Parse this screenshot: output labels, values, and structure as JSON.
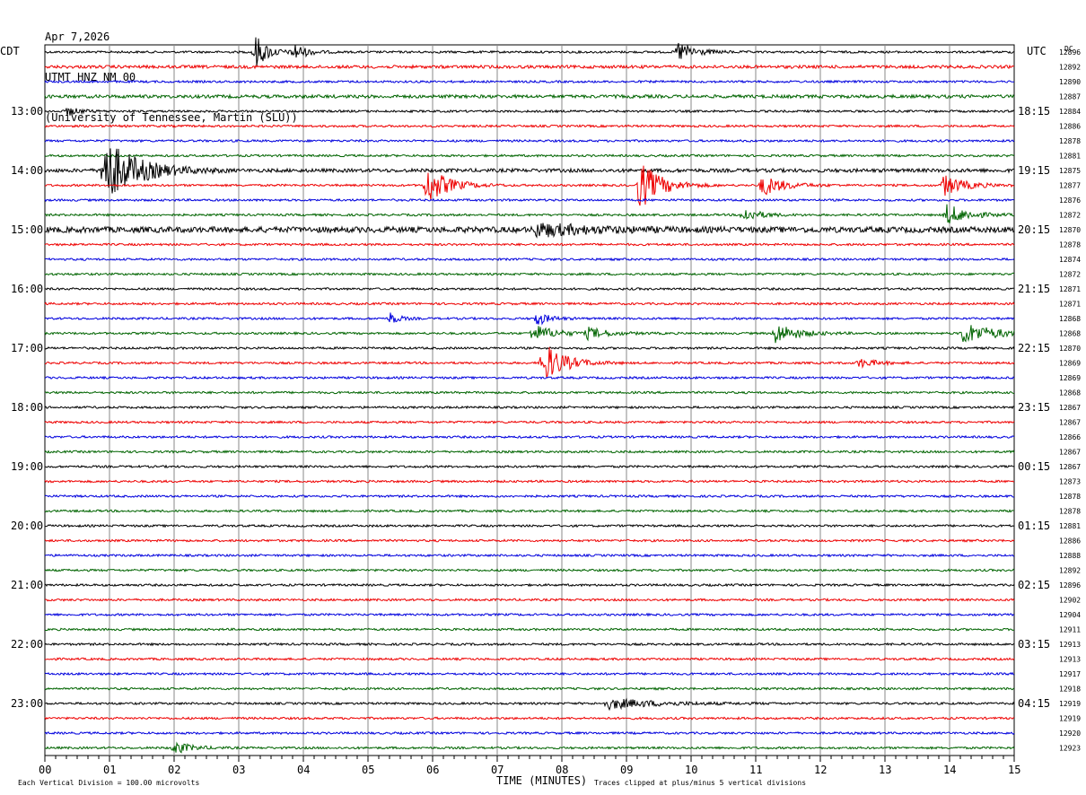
{
  "header": {
    "date": "Apr 7,2026",
    "station": "UTMT HNZ NM 00",
    "network": "(University of Tennessee, Martin (SLU))"
  },
  "chart_data": {
    "type": "line",
    "left_tz": "CDT",
    "right_tz": "UTC",
    "dc_label": "DC",
    "left_hours": [
      "13:00",
      "14:00",
      "15:00",
      "16:00",
      "17:00",
      "18:00",
      "19:00",
      "20:00",
      "21:00",
      "22:00",
      "23:00"
    ],
    "right_hours": [
      "18:15",
      "19:15",
      "20:15",
      "21:15",
      "22:15",
      "23:15",
      "00:15",
      "01:15",
      "02:15",
      "03:15",
      "04:15"
    ],
    "x_ticks": [
      "00",
      "01",
      "02",
      "03",
      "04",
      "05",
      "06",
      "07",
      "08",
      "09",
      "10",
      "11",
      "12",
      "13",
      "14",
      "15"
    ],
    "xlim": [
      0,
      15
    ],
    "xlabel": "TIME (MINUTES)",
    "footer_left": "Each Vertical Division =  100.00 microvolts",
    "footer_right": "Traces clipped at plus/minus 5 vertical divisions",
    "trace_colors": [
      "#000000",
      "#ee0000",
      "#0000dd",
      "#006400"
    ],
    "dc_values": [
      "12896",
      "12892",
      "12890",
      "12887",
      "12884",
      "12886",
      "12878",
      "12881",
      "12875",
      "12877",
      "12876",
      "12872",
      "12870",
      "12878",
      "12874",
      "12872",
      "12871",
      "12871",
      "12868",
      "12868",
      "12870",
      "12869",
      "12869",
      "12868",
      "12867",
      "12867",
      "12866",
      "12867",
      "12867",
      "12873",
      "12878",
      "12878",
      "12881",
      "12886",
      "12888",
      "12892",
      "12896",
      "12902",
      "12904",
      "12911",
      "12913",
      "12913",
      "12917",
      "12918",
      "12919",
      "12919",
      "12920",
      "12923"
    ],
    "events": [
      {
        "trace": 0,
        "minute": 3.25,
        "amp": 20,
        "dur": 0.3
      },
      {
        "trace": 0,
        "minute": 3.85,
        "amp": 10,
        "dur": 0.3
      },
      {
        "trace": 0,
        "minute": 9.8,
        "amp": 12,
        "dur": 0.4
      },
      {
        "trace": 4,
        "minute": 0.35,
        "amp": 5,
        "dur": 0.3
      },
      {
        "trace": 8,
        "minute": 0.9,
        "amp": 38,
        "dur": 0.8
      },
      {
        "trace": 9,
        "minute": 5.9,
        "amp": 22,
        "dur": 0.5
      },
      {
        "trace": 9,
        "minute": 9.2,
        "amp": 28,
        "dur": 0.5
      },
      {
        "trace": 9,
        "minute": 11.1,
        "amp": 12,
        "dur": 0.5
      },
      {
        "trace": 9,
        "minute": 13.9,
        "amp": 12,
        "dur": 0.5
      },
      {
        "trace": 11,
        "minute": 10.8,
        "amp": 8,
        "dur": 0.4
      },
      {
        "trace": 11,
        "minute": 13.95,
        "amp": 12,
        "dur": 0.5
      },
      {
        "trace": 12,
        "minute": 7.6,
        "amp": 7,
        "dur": 1.2
      },
      {
        "trace": 18,
        "minute": 5.35,
        "amp": 7,
        "dur": 0.2
      },
      {
        "trace": 18,
        "minute": 7.6,
        "amp": 8,
        "dur": 0.3
      },
      {
        "trace": 19,
        "minute": 7.55,
        "amp": 10,
        "dur": 0.5
      },
      {
        "trace": 19,
        "minute": 8.4,
        "amp": 6,
        "dur": 0.5
      },
      {
        "trace": 19,
        "minute": 11.3,
        "amp": 12,
        "dur": 0.5
      },
      {
        "trace": 19,
        "minute": 14.2,
        "amp": 12,
        "dur": 0.8
      },
      {
        "trace": 21,
        "minute": 7.7,
        "amp": 24,
        "dur": 0.5
      },
      {
        "trace": 21,
        "minute": 12.6,
        "amp": 5,
        "dur": 0.4
      },
      {
        "trace": 44,
        "minute": 8.7,
        "amp": 6,
        "dur": 1.2
      },
      {
        "trace": 47,
        "minute": 2.0,
        "amp": 7,
        "dur": 0.4
      }
    ],
    "noisy_traces": [
      {
        "trace": 12,
        "amp": 3.2
      },
      {
        "trace": 8,
        "amp": 2.0
      },
      {
        "trace": 3,
        "amp": 1.8
      },
      {
        "trace": 1,
        "amp": 1.7
      }
    ]
  }
}
